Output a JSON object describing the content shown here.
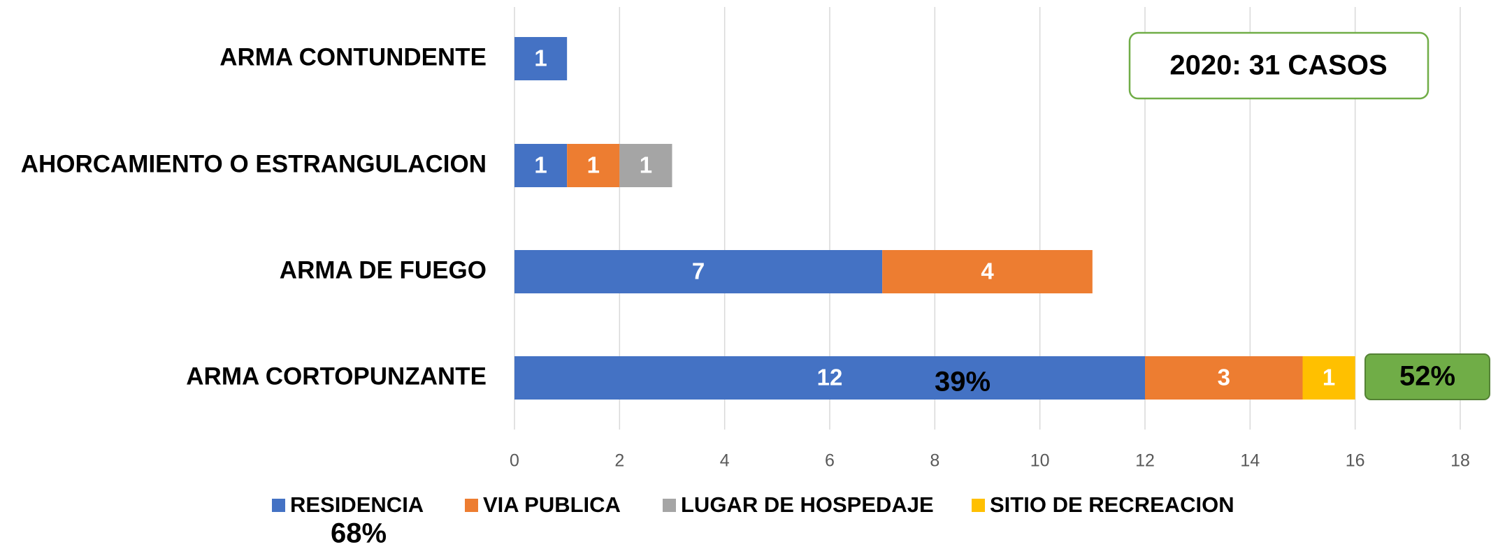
{
  "chart_data": {
    "type": "hbar_stacked",
    "categories": [
      "ARMA CONTUNDENTE",
      "AHORCAMIENTO O ESTRANGULACION",
      "ARMA DE FUEGO",
      "ARMA CORTOPUNZANTE"
    ],
    "series": [
      {
        "name": "RESIDENCIA",
        "color": "#4472c4",
        "values": [
          1,
          1,
          7,
          12
        ]
      },
      {
        "name": "VIA PUBLICA",
        "color": "#ed7d31",
        "values": [
          null,
          1,
          4,
          3
        ]
      },
      {
        "name": "LUGAR DE HOSPEDAJE",
        "color": "#a5a5a5",
        "values": [
          null,
          1,
          null,
          null
        ]
      },
      {
        "name": "SITIO DE RECREACION",
        "color": "#ffc000",
        "values": [
          null,
          null,
          null,
          1
        ]
      }
    ],
    "xlim": [
      0,
      18
    ],
    "xticks": [
      0,
      2,
      4,
      6,
      8,
      10,
      12,
      14,
      16,
      18
    ],
    "grid": true,
    "annotations": [
      "2020: 31 CASOS",
      "39%",
      "52%",
      "68%"
    ]
  }
}
